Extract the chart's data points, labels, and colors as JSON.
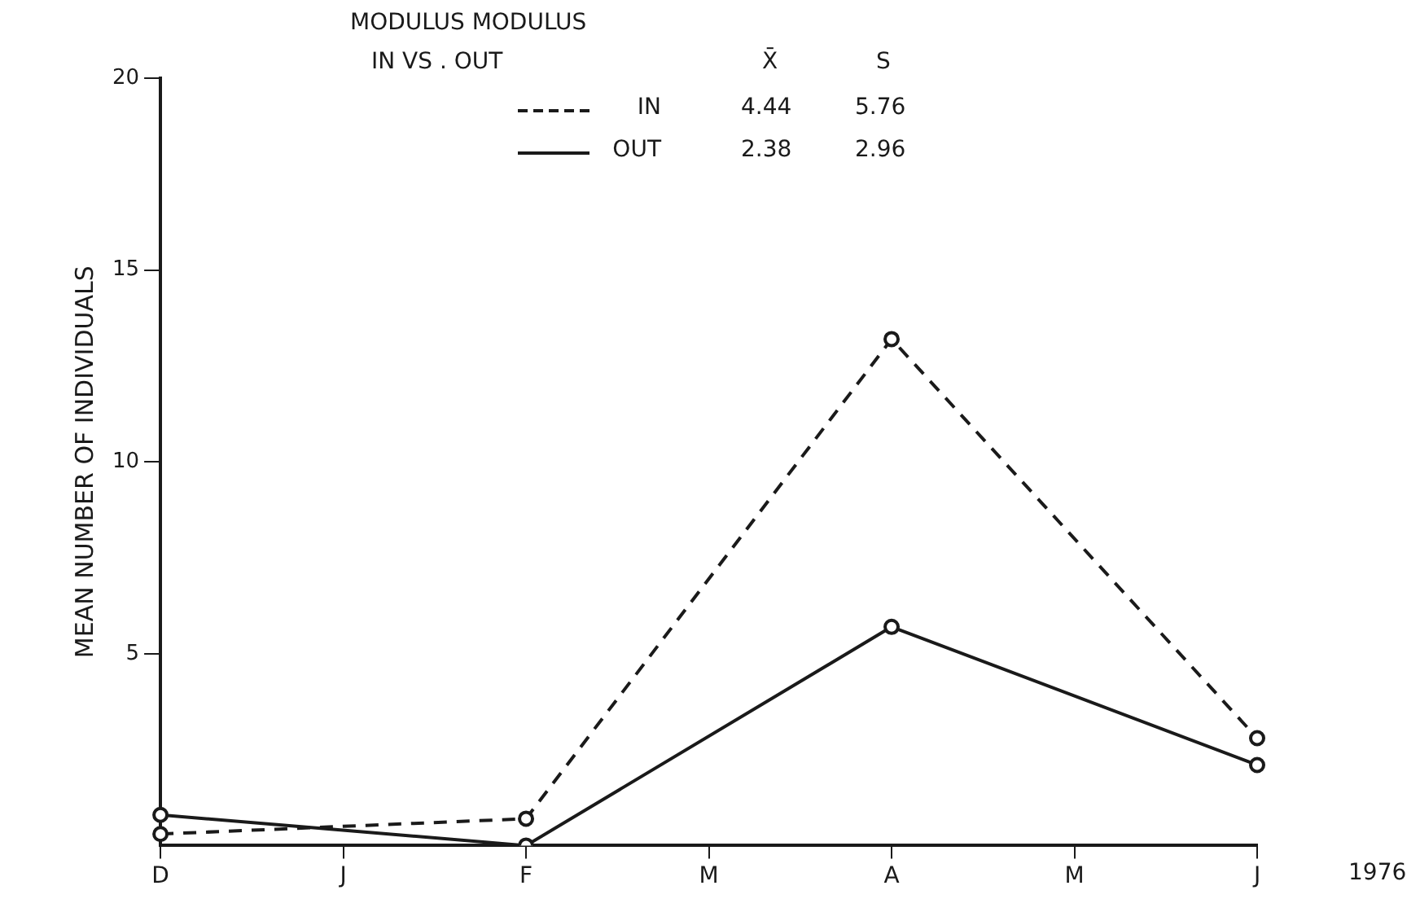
{
  "chart_data": {
    "type": "line",
    "title": "MODULUS MODULUS",
    "subtitle": "IN VS . OUT",
    "ylabel": "MEAN NUMBER OF INDIVIDUALS",
    "xlabel": "1976",
    "categories": [
      "D",
      "J",
      "F",
      "M",
      "A",
      "M",
      "J"
    ],
    "series": [
      {
        "name": "IN",
        "color": "#1a1a1a",
        "line_style": "dashed",
        "values": [
          0.3,
          null,
          0.7,
          null,
          13.2,
          null,
          2.8
        ]
      },
      {
        "name": "OUT",
        "color": "#1a1a1a",
        "line_style": "solid",
        "values": [
          0.8,
          null,
          0,
          null,
          5.7,
          null,
          2.1
        ]
      }
    ],
    "annotations": [
      "X̄",
      "S",
      "4.44",
      "5.76",
      "2.38",
      "2.96"
    ],
    "ylim": [
      0,
      20
    ],
    "yticks": [
      5,
      10,
      15,
      20
    ],
    "grid": false,
    "legend": "top",
    "marker": "circle"
  }
}
